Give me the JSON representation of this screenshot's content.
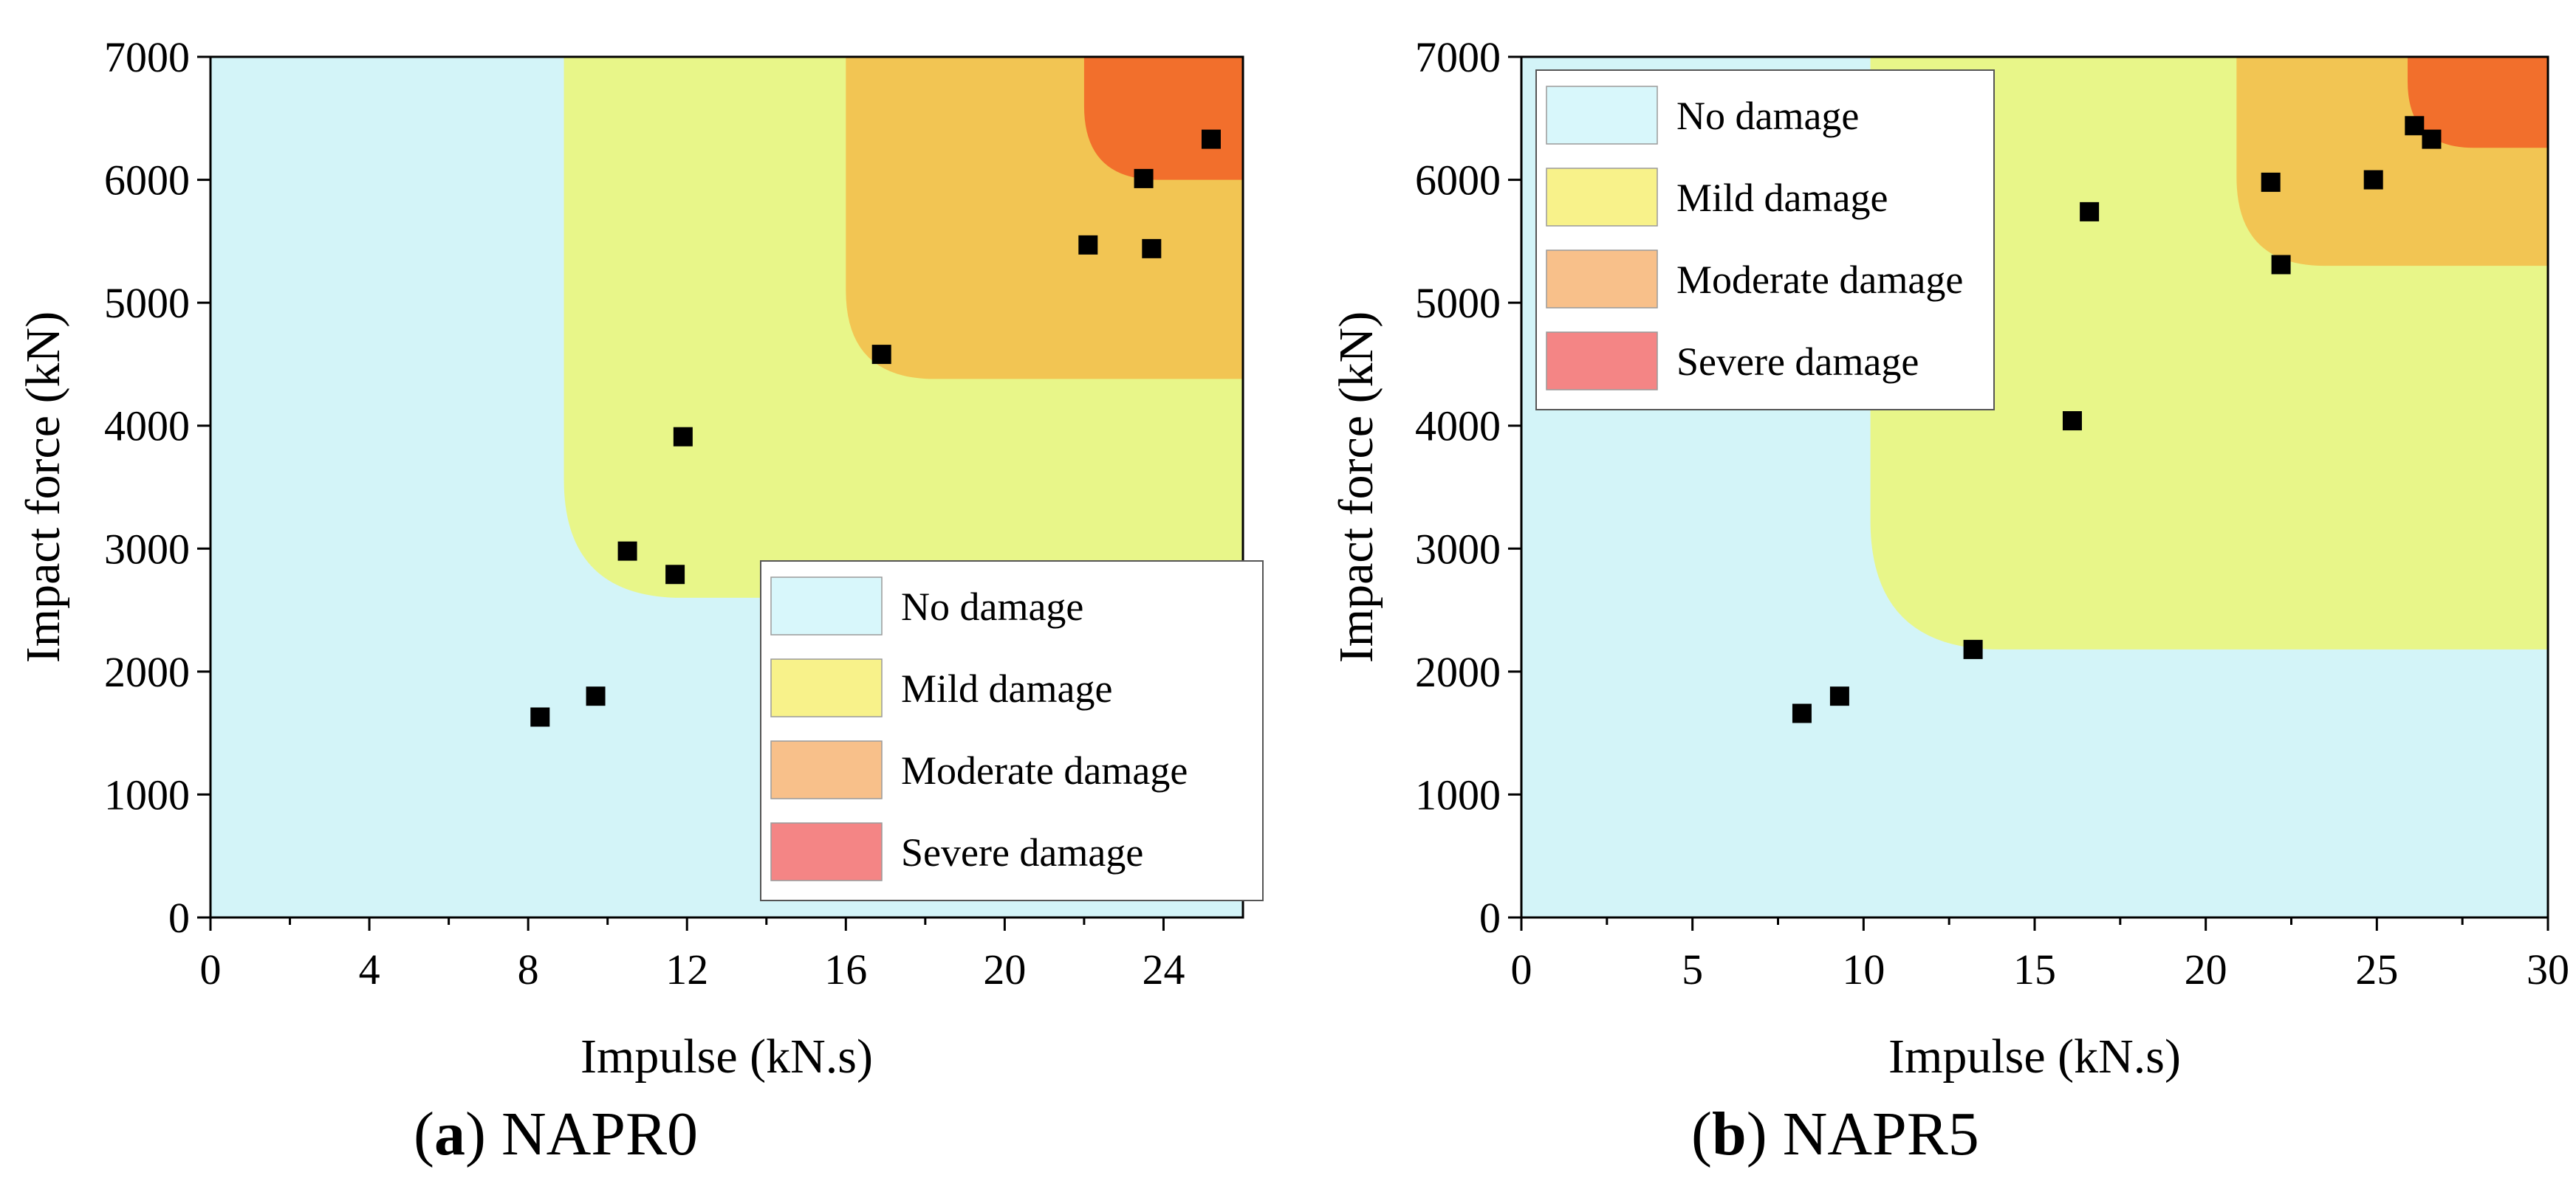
{
  "colors": {
    "no_damage": "#d3f4f8",
    "mild_damage": "#e8f689",
    "moderate_damage": "#f2c553",
    "severe_damage": "#f26f2c",
    "legend_no": "#d8f7fb",
    "legend_mild": "#f8f28a",
    "legend_moderate": "#f8c08a",
    "legend_severe": "#f48585"
  },
  "captions": [
    {
      "letter": "a",
      "rest": " NAPR0"
    },
    {
      "letter": "b",
      "rest": " NAPR5"
    }
  ],
  "chart_data": [
    {
      "type": "scatter",
      "id": "a",
      "title": "",
      "xlabel": "Impulse (kN.s)",
      "ylabel": "Impact force (kN)",
      "xlim": [
        0,
        26
      ],
      "ylim": [
        0,
        7000
      ],
      "xticks": [
        0,
        4,
        8,
        12,
        16,
        20,
        24
      ],
      "xminor": [
        2,
        6,
        10,
        14,
        18,
        22
      ],
      "yticks": [
        0,
        1000,
        2000,
        3000,
        4000,
        5000,
        6000,
        7000
      ],
      "legend_position": "bottom-right",
      "legend": [
        "No damage",
        "Mild damage",
        "Moderate damage",
        "Severe damage"
      ],
      "zones": [
        {
          "name": "Mild damage",
          "x0": 8.9,
          "y0": 2600
        },
        {
          "name": "Moderate damage",
          "x0": 16.0,
          "y0": 4380
        },
        {
          "name": "Severe damage",
          "x0": 22.0,
          "y0": 6000
        }
      ],
      "points": [
        {
          "x": 8.3,
          "y": 1630
        },
        {
          "x": 9.7,
          "y": 1800
        },
        {
          "x": 10.5,
          "y": 2980
        },
        {
          "x": 11.7,
          "y": 2790
        },
        {
          "x": 11.9,
          "y": 3910
        },
        {
          "x": 16.9,
          "y": 4580
        },
        {
          "x": 22.1,
          "y": 5470
        },
        {
          "x": 23.5,
          "y": 6010
        },
        {
          "x": 23.7,
          "y": 5440
        },
        {
          "x": 25.2,
          "y": 6330
        }
      ]
    },
    {
      "type": "scatter",
      "id": "b",
      "title": "",
      "xlabel": "Impulse (kN.s)",
      "ylabel": "Impact force (kN)",
      "xlim": [
        0,
        30
      ],
      "ylim": [
        0,
        7000
      ],
      "xticks": [
        0,
        5,
        10,
        15,
        20,
        25,
        30
      ],
      "xminor": [
        2.5,
        7.5,
        12.5,
        17.5,
        22.5,
        27.5
      ],
      "yticks": [
        0,
        1000,
        2000,
        3000,
        4000,
        5000,
        6000,
        7000
      ],
      "legend_position": "top-left",
      "legend": [
        "No damage",
        "Mild damage",
        "Moderate damage",
        "Severe damage"
      ],
      "zones": [
        {
          "name": "Mild damage",
          "x0": 10.2,
          "y0": 2180
        },
        {
          "name": "Moderate damage",
          "x0": 20.9,
          "y0": 5300
        },
        {
          "name": "Severe damage",
          "x0": 25.9,
          "y0": 6260
        }
      ],
      "points": [
        {
          "x": 8.2,
          "y": 1660
        },
        {
          "x": 9.3,
          "y": 1800
        },
        {
          "x": 13.2,
          "y": 2180
        },
        {
          "x": 16.1,
          "y": 4040
        },
        {
          "x": 16.6,
          "y": 5740
        },
        {
          "x": 21.9,
          "y": 5980
        },
        {
          "x": 22.2,
          "y": 5310
        },
        {
          "x": 24.9,
          "y": 6000
        },
        {
          "x": 26.1,
          "y": 6440
        },
        {
          "x": 26.6,
          "y": 6330
        }
      ]
    }
  ]
}
